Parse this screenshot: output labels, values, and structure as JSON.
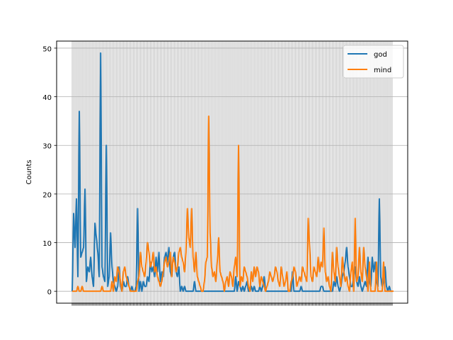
{
  "chart_data": {
    "type": "line",
    "title": "",
    "xlabel": "",
    "ylabel": "Counts",
    "ylim": [
      -2.45,
      51.45
    ],
    "yticks": [
      0,
      10,
      20,
      30,
      40,
      50
    ],
    "grid": true,
    "legend_position": "top-right",
    "colors": {
      "god": "#1f77b4",
      "mind": "#ff7f0e"
    },
    "series": [
      {
        "name": "god",
        "values": [
          0,
          16,
          9,
          19,
          3,
          37,
          7,
          8,
          9,
          21,
          2,
          5,
          4,
          7,
          3,
          1,
          14,
          11,
          8,
          3,
          49,
          5,
          3,
          2,
          30,
          1,
          3,
          12,
          5,
          2,
          1,
          0,
          1,
          5,
          1,
          0,
          2,
          1,
          1,
          3,
          1,
          0,
          1,
          0,
          0,
          1,
          17,
          0,
          2,
          0,
          2,
          1,
          1,
          3,
          2,
          6,
          4,
          5,
          3,
          7,
          4,
          8,
          2,
          4,
          3,
          7,
          8,
          6,
          9,
          4,
          3,
          7,
          8,
          4,
          3,
          5,
          0,
          1,
          0,
          1,
          0,
          0,
          0,
          0,
          0,
          0,
          2,
          0,
          0,
          0,
          0,
          0,
          0,
          0,
          0,
          0,
          0,
          0,
          0,
          0,
          0,
          0,
          0,
          0,
          0,
          0,
          0,
          0,
          0,
          0,
          0,
          0,
          0,
          0,
          0,
          3,
          0,
          2,
          1,
          0,
          1,
          0,
          1,
          2,
          0,
          0,
          1,
          0,
          1,
          0,
          0,
          0,
          1,
          0,
          1,
          3,
          0,
          0,
          0,
          0,
          0,
          0,
          0,
          0,
          0,
          0,
          0,
          0,
          0,
          0,
          0,
          0,
          0,
          0,
          0,
          4,
          0,
          0,
          0,
          0,
          0,
          1,
          0,
          0,
          0,
          0,
          0,
          0,
          0,
          0,
          0,
          0,
          0,
          0,
          0,
          1,
          1,
          0,
          0,
          0,
          0,
          0,
          0,
          0,
          2,
          1,
          3,
          1,
          0,
          1,
          3,
          4,
          6,
          9,
          5,
          3,
          1,
          1,
          3,
          5,
          2,
          1,
          3,
          1,
          0,
          1,
          2,
          1,
          7,
          2,
          1,
          7,
          4,
          6,
          2,
          1,
          19,
          3,
          1,
          2,
          5,
          1,
          0,
          1,
          0,
          0
        ]
      },
      {
        "name": "mind",
        "values": [
          0,
          0,
          0,
          0,
          1,
          0,
          0,
          1,
          0,
          0,
          0,
          0,
          0,
          0,
          0,
          0,
          0,
          0,
          0,
          0,
          0,
          1,
          0,
          0,
          0,
          0,
          0,
          0,
          2,
          0,
          3,
          2,
          5,
          4,
          2,
          0,
          4,
          5,
          3,
          2,
          1,
          0,
          0,
          0,
          0,
          0,
          2,
          3,
          8,
          5,
          4,
          3,
          6,
          10,
          8,
          5,
          6,
          8,
          4,
          5,
          3,
          2,
          1,
          2,
          4,
          6,
          7,
          5,
          6,
          8,
          3,
          7,
          6,
          4,
          5,
          8,
          9,
          7,
          6,
          4,
          8,
          17,
          11,
          9,
          17,
          7,
          4,
          8,
          3,
          2,
          1,
          0,
          0,
          2,
          6,
          7,
          36,
          12,
          5,
          3,
          4,
          2,
          6,
          11,
          4,
          3,
          2,
          0,
          2,
          3,
          1,
          4,
          3,
          1,
          5,
          7,
          3,
          30,
          1,
          3,
          2,
          5,
          4,
          3,
          1,
          0,
          4,
          2,
          5,
          3,
          5,
          4,
          1,
          3,
          2,
          1,
          0,
          1,
          2,
          4,
          3,
          2,
          3,
          5,
          4,
          2,
          1,
          5,
          3,
          1,
          2,
          4,
          0,
          0,
          2,
          3,
          5,
          4,
          1,
          2,
          3,
          2,
          5,
          4,
          3,
          2,
          15,
          9,
          3,
          2,
          5,
          4,
          3,
          7,
          4,
          6,
          5,
          13,
          4,
          2,
          3,
          1,
          0,
          8,
          4,
          2,
          9,
          5,
          3,
          1,
          7,
          4,
          2,
          3,
          1,
          0,
          4,
          6,
          0,
          15,
          2,
          3,
          9,
          4,
          2,
          9,
          5,
          3,
          0,
          6,
          0,
          0,
          0,
          0,
          6,
          0,
          0,
          0,
          0,
          6,
          0,
          0,
          0,
          0,
          0,
          0,
          0
        ]
      }
    ]
  }
}
